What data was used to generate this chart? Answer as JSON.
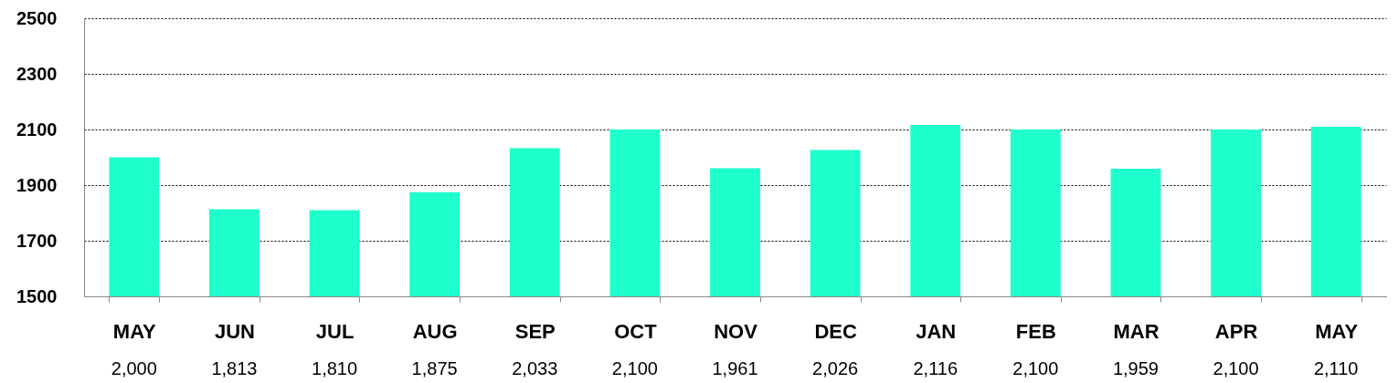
{
  "chart_data": {
    "type": "bar",
    "categories": [
      "MAY",
      "JUN",
      "JUL",
      "AUG",
      "SEP",
      "OCT",
      "NOV",
      "DEC",
      "JAN",
      "FEB",
      "MAR",
      "APR",
      "MAY"
    ],
    "values": [
      2000,
      1813,
      1810,
      1875,
      2033,
      2100,
      1961,
      2026,
      2116,
      2100,
      1959,
      2100,
      2110
    ],
    "value_labels": [
      "2,000",
      "1,813",
      "1,810",
      "1,875",
      "2,033",
      "2,100",
      "1,961",
      "2,026",
      "2,116",
      "2,100",
      "1,959",
      "2,100",
      "2,110"
    ],
    "color": "#1effcc",
    "ylim": [
      1500,
      2500
    ],
    "yticks": [
      1500,
      1700,
      1900,
      2100,
      2300,
      2500
    ],
    "grid": "y"
  }
}
